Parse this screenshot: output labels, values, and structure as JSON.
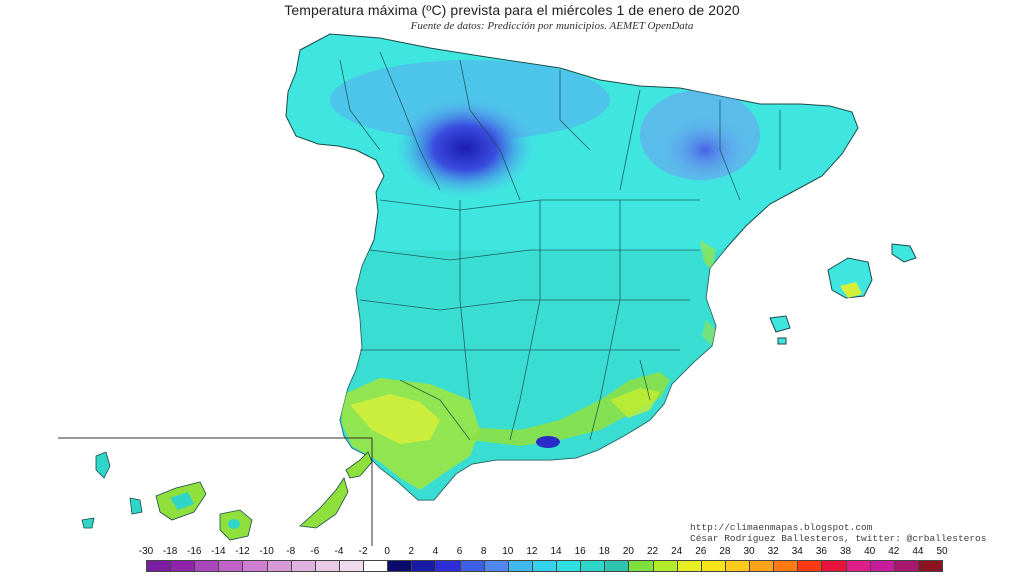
{
  "header": {
    "title": "Temperatura máxima (ºC) prevista para el miércoles 1 de enero de 2020",
    "subtitle": "Fuente de datos: Predicción por municipios. AEMET OpenData"
  },
  "credits": {
    "blog": "http://climaenmapas.blogspot.com",
    "author": "César Rodríguez Ballesteros, twitter: @crballesteros"
  },
  "legend": {
    "labels": [
      "-30",
      "-18",
      "-16",
      "-14",
      "-12",
      "-10",
      "-8",
      "-6",
      "-4",
      "-2",
      "0",
      "2",
      "4",
      "6",
      "8",
      "10",
      "12",
      "14",
      "16",
      "18",
      "20",
      "22",
      "24",
      "26",
      "28",
      "30",
      "32",
      "34",
      "36",
      "38",
      "40",
      "42",
      "44",
      "50"
    ],
    "colors": [
      "#7b1fa2",
      "#8e24aa",
      "#ab47bc",
      "#c162c8",
      "#cf7fd1",
      "#d99ad8",
      "#e0b3df",
      "#e8c9e6",
      "#f0dcee",
      "#ffffff",
      "#0b0b6e",
      "#1a1aa8",
      "#2e2ed8",
      "#3f5fe6",
      "#4f86f0",
      "#3fb8ee",
      "#35d2ee",
      "#2fe0e0",
      "#2ed6c8",
      "#2fc4b0",
      "#7ee03c",
      "#b5ec2a",
      "#e6f020",
      "#f6e418",
      "#ffc91c",
      "#ffa418",
      "#ff7a14",
      "#ff3a10",
      "#e8143c",
      "#e01e8a",
      "#c81ca0",
      "#a8186e",
      "#8a1420"
    ]
  },
  "map": {
    "region_colors": {
      "base": "#3fe6e0",
      "northern_cold": "#5aa8f0",
      "cold_core": "#2a2ac8",
      "south_warm": "#9ae642",
      "warm_hot": "#d6f03a",
      "sea": "#ffffff",
      "border": "#1a4a4a"
    }
  }
}
